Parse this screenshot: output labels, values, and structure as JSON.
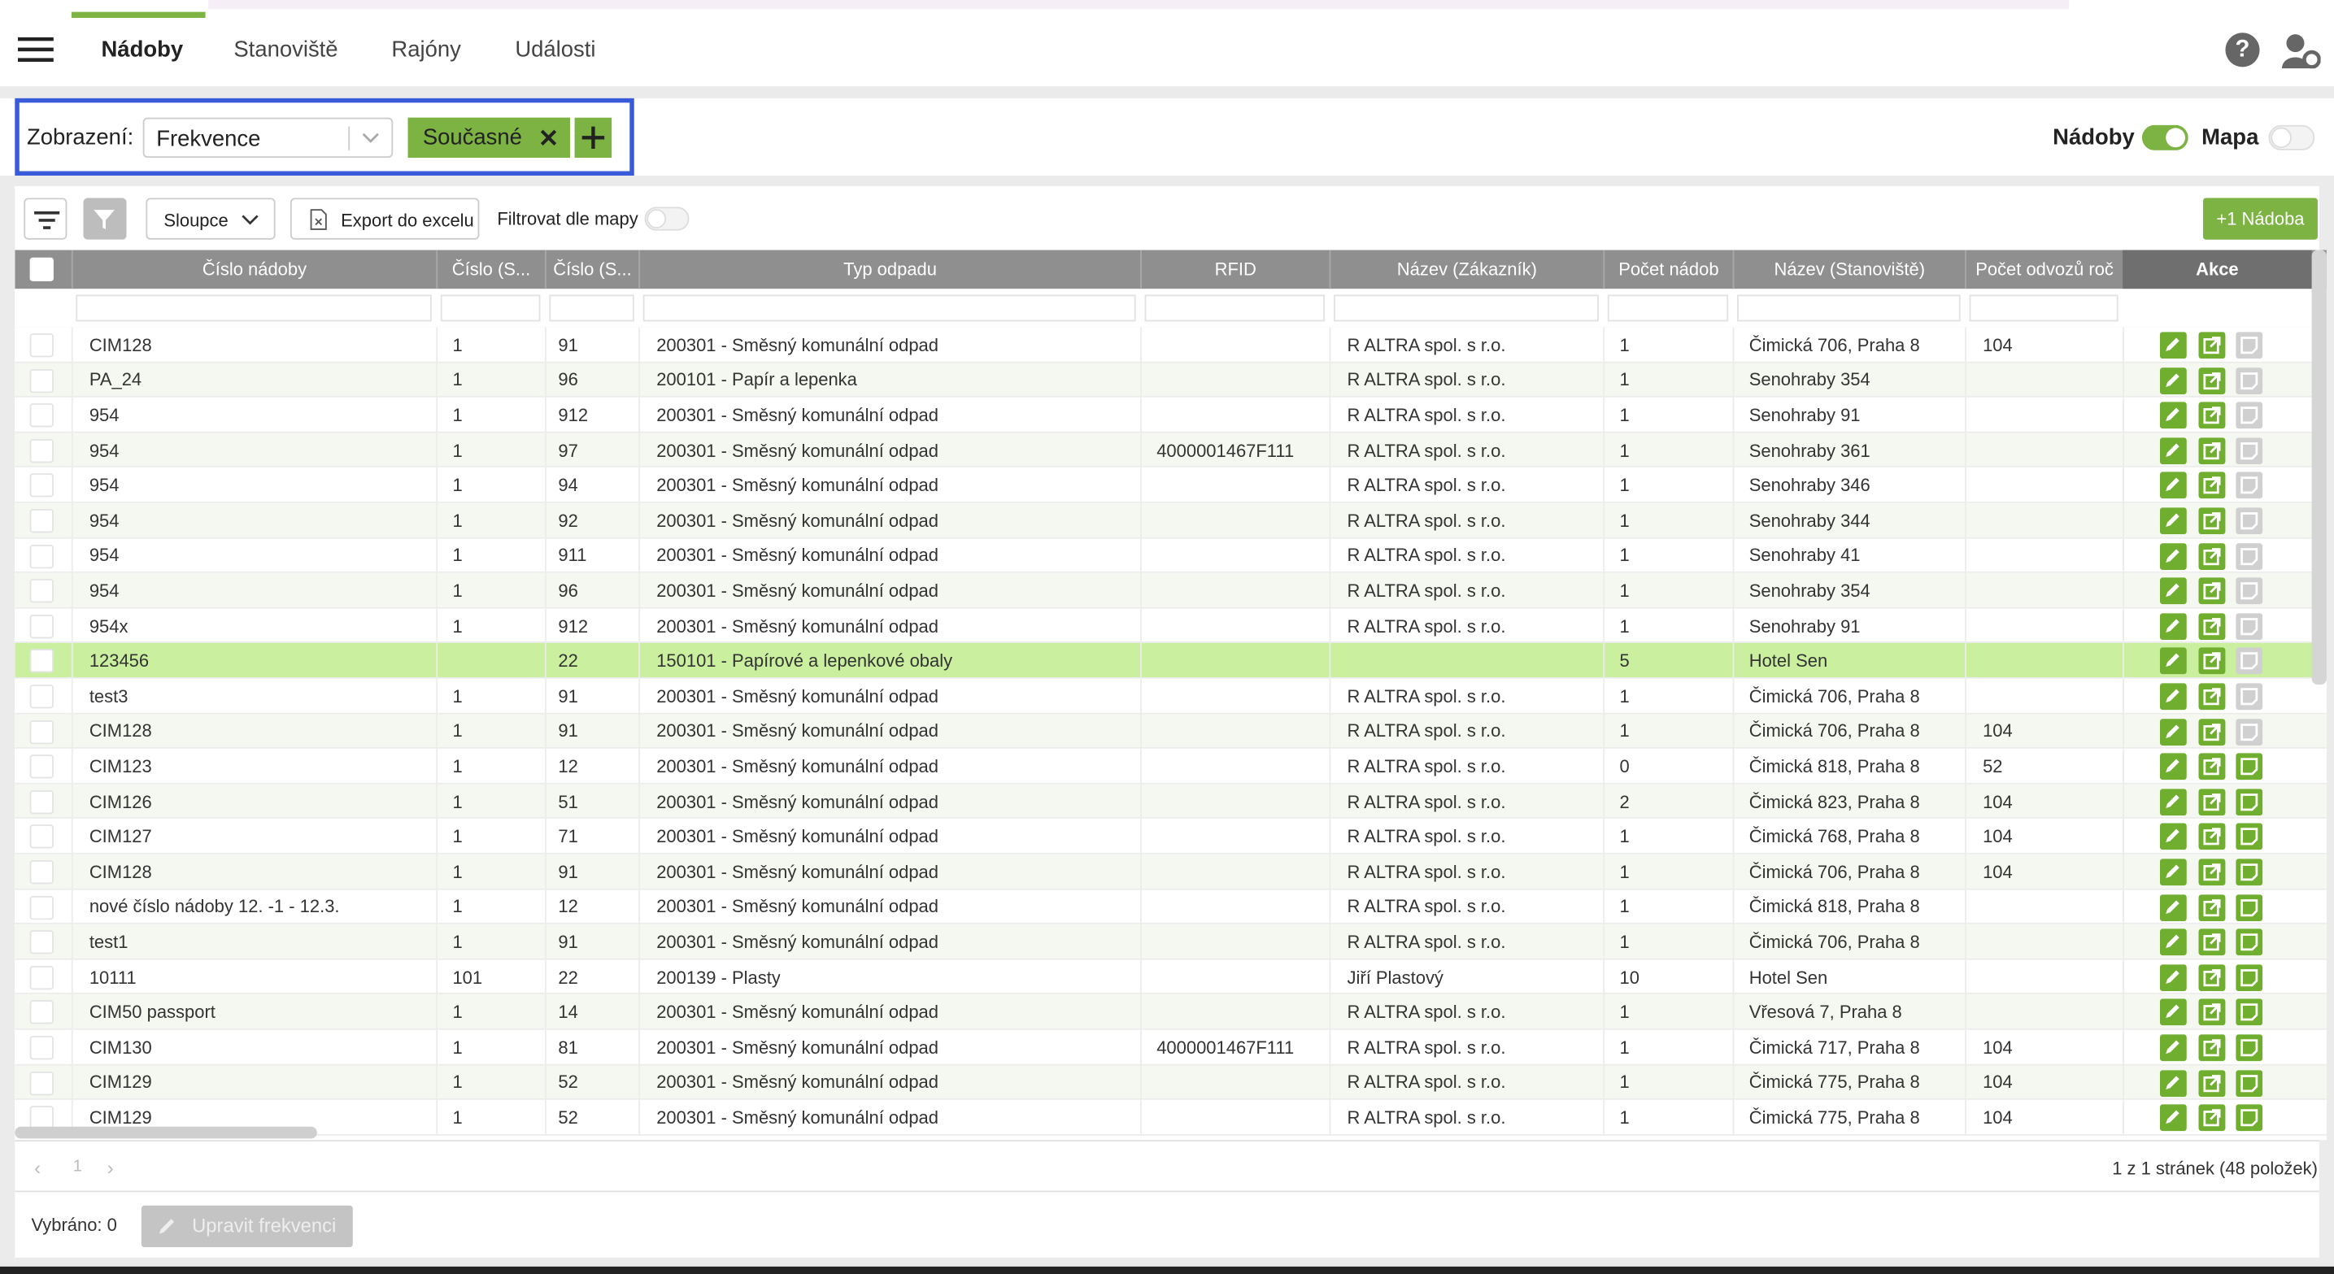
{
  "nav": {
    "tabs": [
      "Nádoby",
      "Stanoviště",
      "Rajóny",
      "Události"
    ],
    "help": "?"
  },
  "view": {
    "label": "Zobrazení:",
    "select": "Frekvence",
    "tag": "Současné",
    "toggles": [
      "Nádoby",
      "Mapa"
    ]
  },
  "toolbar": {
    "columns": "Sloupce",
    "export": "Export do excelu",
    "map_filter": "Filtrovat dle mapy",
    "add": "+1 Nádoba"
  },
  "table": {
    "headers": [
      "Číslo nádoby",
      "Číslo (S...",
      "Číslo (S...",
      "Typ odpadu",
      "RFID",
      "Název (Zákazník)",
      "Počet nádob",
      "Název (Stanoviště)",
      "Počet odvozů roč"
    ],
    "actions": "Akce",
    "rows": [
      [
        "CIM128",
        "1",
        "91",
        "200301 - Směsný komunální odpad",
        null,
        "R ALTRA spol. s r.o.",
        "1",
        "Čimická 706, Praha 8",
        "104"
      ],
      [
        "PA_24",
        "1",
        "96",
        "200101 - Papír a lepenka",
        null,
        "R ALTRA spol. s r.o.",
        "1",
        "Senohraby 354",
        null
      ],
      [
        "954",
        "1",
        "912",
        "200301 - Směsný komunální odpad",
        null,
        "R ALTRA spol. s r.o.",
        "1",
        "Senohraby 91",
        null
      ],
      [
        "954",
        "1",
        "97",
        "200301 - Směsný komunální odpad",
        "4000001467F111",
        "R ALTRA spol. s r.o.",
        "1",
        "Senohraby 361",
        null
      ],
      [
        "954",
        "1",
        "94",
        "200301 - Směsný komunální odpad",
        null,
        "R ALTRA spol. s r.o.",
        "1",
        "Senohraby 346",
        null
      ],
      [
        "954",
        "1",
        "92",
        "200301 - Směsný komunální odpad",
        null,
        "R ALTRA spol. s r.o.",
        "1",
        "Senohraby 344",
        null
      ],
      [
        "954",
        "1",
        "911",
        "200301 - Směsný komunální odpad",
        null,
        "R ALTRA spol. s r.o.",
        "1",
        "Senohraby 41",
        null
      ],
      [
        "954",
        "1",
        "96",
        "200301 - Směsný komunální odpad",
        null,
        "R ALTRA spol. s r.o.",
        "1",
        "Senohraby 354",
        null
      ],
      [
        "954x",
        "1",
        "912",
        "200301 - Směsný komunální odpad",
        null,
        "R ALTRA spol. s r.o.",
        "1",
        "Senohraby 91",
        null
      ],
      [
        "123456",
        null,
        "22",
        "150101 - Papírové a lepenkové obaly",
        null,
        null,
        "5",
        "Hotel Sen",
        null
      ],
      [
        "test3",
        "1",
        "91",
        "200301 - Směsný komunální odpad",
        null,
        "R ALTRA spol. s r.o.",
        "1",
        "Čimická 706, Praha 8",
        null
      ],
      [
        "CIM128",
        "1",
        "91",
        "200301 - Směsný komunální odpad",
        null,
        "R ALTRA spol. s r.o.",
        "1",
        "Čimická 706, Praha 8",
        "104"
      ],
      [
        "CIM123",
        "1",
        "12",
        "200301 - Směsný komunální odpad",
        null,
        "R ALTRA spol. s r.o.",
        "0",
        "Čimická 818, Praha 8",
        "52"
      ],
      [
        "CIM126",
        "1",
        "51",
        "200301 - Směsný komunální odpad",
        null,
        "R ALTRA spol. s r.o.",
        "2",
        "Čimická 823, Praha 8",
        "104"
      ],
      [
        "CIM127",
        "1",
        "71",
        "200301 - Směsný komunální odpad",
        null,
        "R ALTRA spol. s r.o.",
        "1",
        "Čimická 768, Praha 8",
        "104"
      ],
      [
        "CIM128",
        "1",
        "91",
        "200301 - Směsný komunální odpad",
        null,
        "R ALTRA spol. s r.o.",
        "1",
        "Čimická 706, Praha 8",
        "104"
      ],
      [
        "nové číslo nádoby 12. -1 - 12.3.",
        "1",
        "12",
        "200301 - Směsný komunální odpad",
        null,
        "R ALTRA spol. s r.o.",
        "1",
        "Čimická 818, Praha 8",
        null
      ],
      [
        "test1",
        "1",
        "91",
        "200301 - Směsný komunální odpad",
        null,
        "R ALTRA spol. s r.o.",
        "1",
        "Čimická 706, Praha 8",
        null
      ],
      [
        "10111",
        "101",
        "22",
        "200139 - Plasty",
        null,
        "Jiří Plastový",
        "10",
        "Hotel Sen",
        null
      ],
      [
        "CIM50 passport",
        "1",
        "14",
        "200301 - Směsný komunální odpad",
        null,
        "R ALTRA spol. s r.o.",
        "1",
        "Vřesová 7, Praha 8",
        null
      ],
      [
        "CIM130",
        "1",
        "81",
        "200301 - Směsný komunální odpad",
        "4000001467F111",
        "R ALTRA spol. s r.o.",
        "1",
        "Čimická 717, Praha 8",
        "104"
      ],
      [
        "CIM129",
        "1",
        "52",
        "200301 - Směsný komunální odpad",
        null,
        "R ALTRA spol. s r.o.",
        "1",
        "Čimická 775, Praha 8",
        "104"
      ],
      [
        "CIM129",
        "1",
        "52",
        "200301 - Směsný komunální odpad",
        null,
        "R ALTRA spol. s r.o.",
        "1",
        "Čimická 775, Praha 8",
        "104"
      ]
    ]
  },
  "pager": {
    "page": "1",
    "summary": "1 z 1 stránek (48 položek)"
  },
  "footer": {
    "selected": "Vybráno: 0",
    "button": "Upravit frekvenci"
  }
}
